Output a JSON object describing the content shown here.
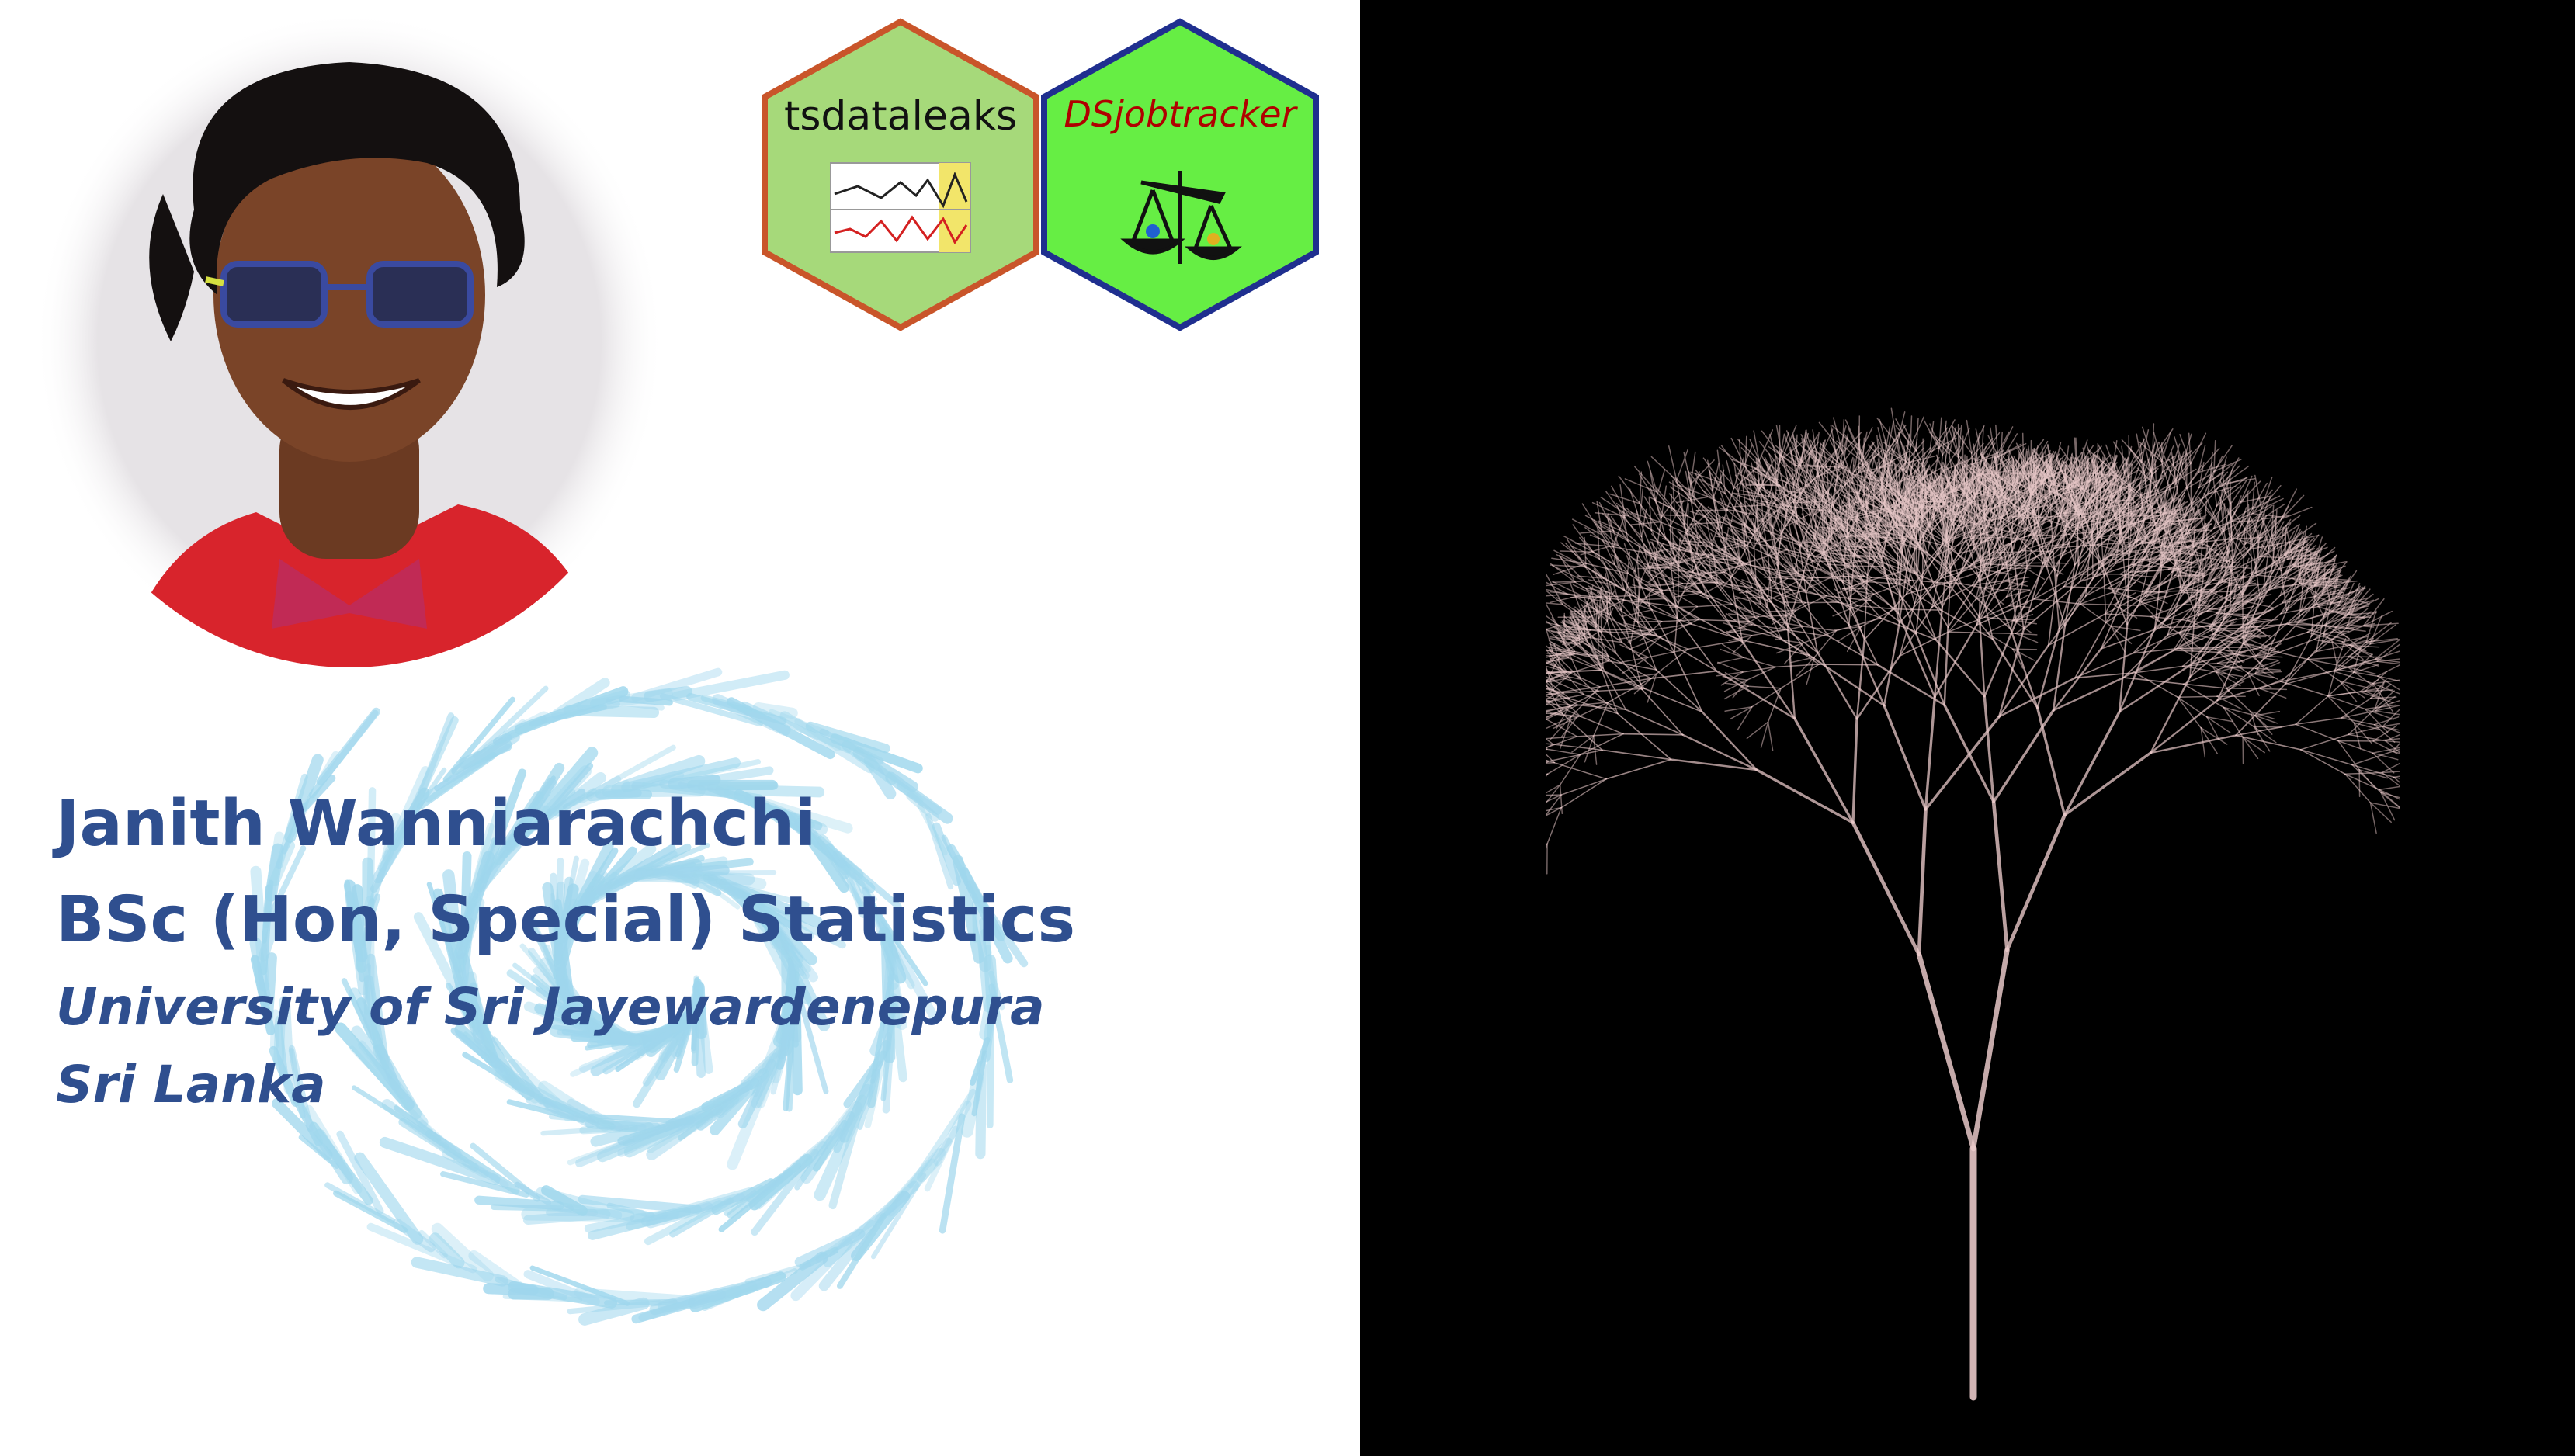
{
  "profile": {
    "name": "Janith Wanniarachchi",
    "degree": "BSc (Hon, Special) Statistics",
    "university": "University of Sri Jayewardenepura",
    "country": "Sri Lanka"
  },
  "logos": [
    {
      "title": "tsdataleaks",
      "icon": "time-series-chart-icon",
      "border_color": "#c9552a",
      "fill_color": "#a6d97a"
    },
    {
      "title": "DSjobtracker",
      "icon": "balance-scale-icon",
      "border_color": "#1f2f8f",
      "fill_color": "#66ee44"
    }
  ],
  "colors": {
    "text": "#2f4f8f",
    "spiral": "#8fd0ea",
    "tree": "#e8c8c8",
    "right_background": "#000000"
  }
}
